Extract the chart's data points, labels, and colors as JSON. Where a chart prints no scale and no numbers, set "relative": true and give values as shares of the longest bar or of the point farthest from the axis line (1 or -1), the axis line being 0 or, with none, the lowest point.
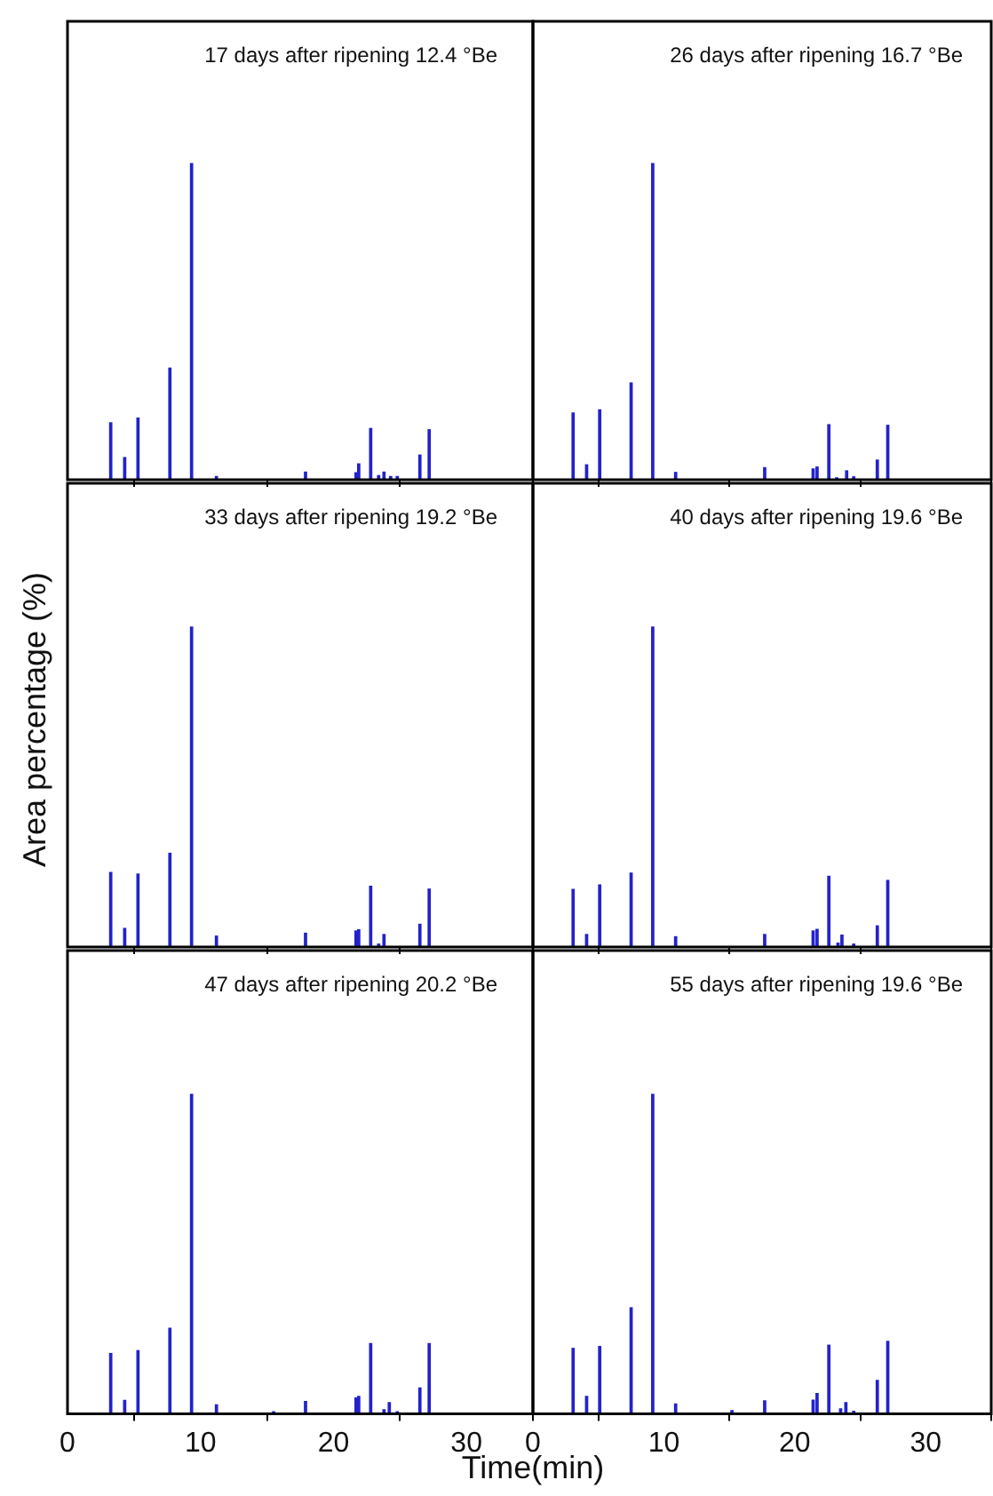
{
  "chart_data": [
    {
      "type": "bar",
      "title": "17 days after ripening 12.4 °Be",
      "relative": true,
      "color": "#2222cc",
      "xlim": [
        0,
        35
      ],
      "xticks": [
        0,
        10,
        20,
        30
      ],
      "tick_labels": false,
      "x": [
        3.25,
        4.3,
        5.3,
        7.7,
        9.33,
        11.2,
        17.9,
        21.7,
        21.9,
        22.8,
        23.4,
        23.8,
        24.3,
        24.8,
        26.5,
        27.2
      ],
      "values": [
        0.18,
        0.07,
        0.195,
        0.353,
        1,
        0.01,
        0.024,
        0.022,
        0.05,
        0.162,
        0.013,
        0.024,
        0.01,
        0.01,
        0.078,
        0.158
      ]
    },
    {
      "type": "bar",
      "title": "26 days after ripening 16.7 °Be",
      "relative": true,
      "color": "#2222cc",
      "xlim": [
        0,
        35
      ],
      "xticks": [
        0,
        10,
        20,
        30
      ],
      "tick_labels": false,
      "x": [
        3.07,
        4.1,
        5.1,
        7.5,
        9.15,
        10.9,
        17.7,
        21.4,
        21.7,
        22.6,
        23.2,
        23.96,
        24.5,
        26.3,
        27.1
      ],
      "values": [
        0.211,
        0.047,
        0.221,
        0.306,
        1,
        0.023,
        0.038,
        0.034,
        0.04,
        0.174,
        0.006,
        0.028,
        0.009,
        0.062,
        0.172
      ]
    },
    {
      "type": "bar",
      "title": "33 days after ripening 19.2 °Be",
      "ylabel": "Area percentage (%)",
      "relative": true,
      "color": "#2222cc",
      "xlim": [
        0,
        35
      ],
      "xticks": [
        0,
        10,
        20,
        30
      ],
      "tick_labels": false,
      "x": [
        3.25,
        4.3,
        5.3,
        7.7,
        9.33,
        11.2,
        17.9,
        21.7,
        21.9,
        22.8,
        23.4,
        23.8,
        26.5,
        27.2
      ],
      "values": [
        0.233,
        0.058,
        0.228,
        0.293,
        1,
        0.034,
        0.043,
        0.05,
        0.054,
        0.19,
        0.009,
        0.039,
        0.071,
        0.181
      ]
    },
    {
      "type": "bar",
      "title": "40 days after ripening 19.6 °Be",
      "relative": true,
      "color": "#2222cc",
      "xlim": [
        0,
        35
      ],
      "xticks": [
        0,
        10,
        20,
        30
      ],
      "tick_labels": false,
      "x": [
        3.07,
        4.1,
        5.1,
        7.5,
        9.15,
        10.9,
        17.7,
        21.4,
        21.7,
        22.6,
        23.3,
        23.6,
        24.5,
        26.3,
        27.1
      ],
      "values": [
        0.18,
        0.039,
        0.194,
        0.231,
        1,
        0.032,
        0.039,
        0.05,
        0.055,
        0.221,
        0.012,
        0.037,
        0.009,
        0.066,
        0.208
      ]
    },
    {
      "type": "bar",
      "title": "47 days after ripening 20.2 °Be",
      "xlabel": "Time(min)",
      "relative": true,
      "color": "#2222cc",
      "xlim": [
        0,
        35
      ],
      "xticks": [
        0,
        10,
        20,
        30
      ],
      "tick_labels": "x",
      "x": [
        3.25,
        4.3,
        5.3,
        7.7,
        9.33,
        11.2,
        15.5,
        17.9,
        21.7,
        21.9,
        22.8,
        23.8,
        24.2,
        24.8,
        26.5,
        27.2
      ],
      "values": [
        0.189,
        0.042,
        0.198,
        0.268,
        1,
        0.028,
        0.007,
        0.039,
        0.05,
        0.055,
        0.22,
        0.013,
        0.035,
        0.007,
        0.081,
        0.22
      ]
    },
    {
      "type": "bar",
      "title": "55 days after ripening 19.6 °Be",
      "relative": true,
      "color": "#2222cc",
      "xlim": [
        0,
        35
      ],
      "xticks": [
        0,
        10,
        20,
        30
      ],
      "tick_labels": "x",
      "x": [
        3.07,
        4.1,
        5.1,
        7.5,
        9.15,
        10.9,
        15.2,
        17.7,
        21.4,
        21.7,
        22.6,
        23.5,
        23.9,
        24.5,
        26.3,
        27.1
      ],
      "values": [
        0.205,
        0.055,
        0.211,
        0.332,
        1,
        0.031,
        0.01,
        0.041,
        0.043,
        0.064,
        0.215,
        0.016,
        0.035,
        0.008,
        0.105,
        0.227
      ]
    }
  ]
}
